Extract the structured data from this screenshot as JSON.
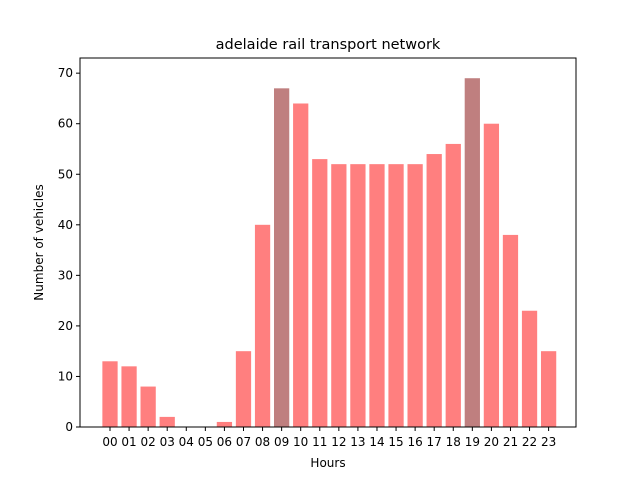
{
  "chart_data": {
    "type": "bar",
    "title": "adelaide rail transport network",
    "xlabel": "Hours",
    "ylabel": "Number of vehicles",
    "categories": [
      "00",
      "01",
      "02",
      "03",
      "04",
      "05",
      "06",
      "07",
      "08",
      "09",
      "10",
      "11",
      "12",
      "13",
      "14",
      "15",
      "16",
      "17",
      "18",
      "19",
      "20",
      "21",
      "22",
      "23"
    ],
    "values": [
      13,
      12,
      8,
      2,
      0,
      0,
      1,
      15,
      40,
      67,
      64,
      53,
      52,
      52,
      52,
      52,
      52,
      54,
      56,
      69,
      60,
      38,
      23,
      15
    ],
    "highlighted": [
      "09",
      "19"
    ],
    "ylim": [
      0,
      73
    ],
    "yticks": [
      0,
      10,
      20,
      30,
      40,
      50,
      60,
      70
    ],
    "grid": false,
    "colors": {
      "bar": "#ff7f7f",
      "highlight": "#bf7f7f"
    }
  }
}
